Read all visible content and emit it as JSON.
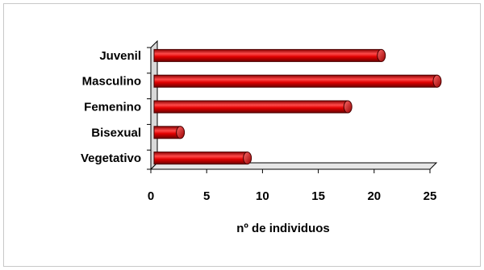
{
  "chart_data": {
    "type": "bar",
    "orientation": "horizontal",
    "categories": [
      "Juvenil",
      "Masculino",
      "Femenino",
      "Bisexual",
      "Vegetativo"
    ],
    "values": [
      20.5,
      25.5,
      17.5,
      2.5,
      8.5
    ],
    "xlabel": "nº de individuos",
    "ylabel": "",
    "xlim": [
      0,
      25
    ],
    "xticks": [
      0,
      5,
      10,
      15,
      20,
      25
    ],
    "grid": false,
    "legend": "none",
    "bar_color": "#cc0000",
    "bar_highlight": "#ff5a5a",
    "bar_shadow": "#7a0000"
  }
}
